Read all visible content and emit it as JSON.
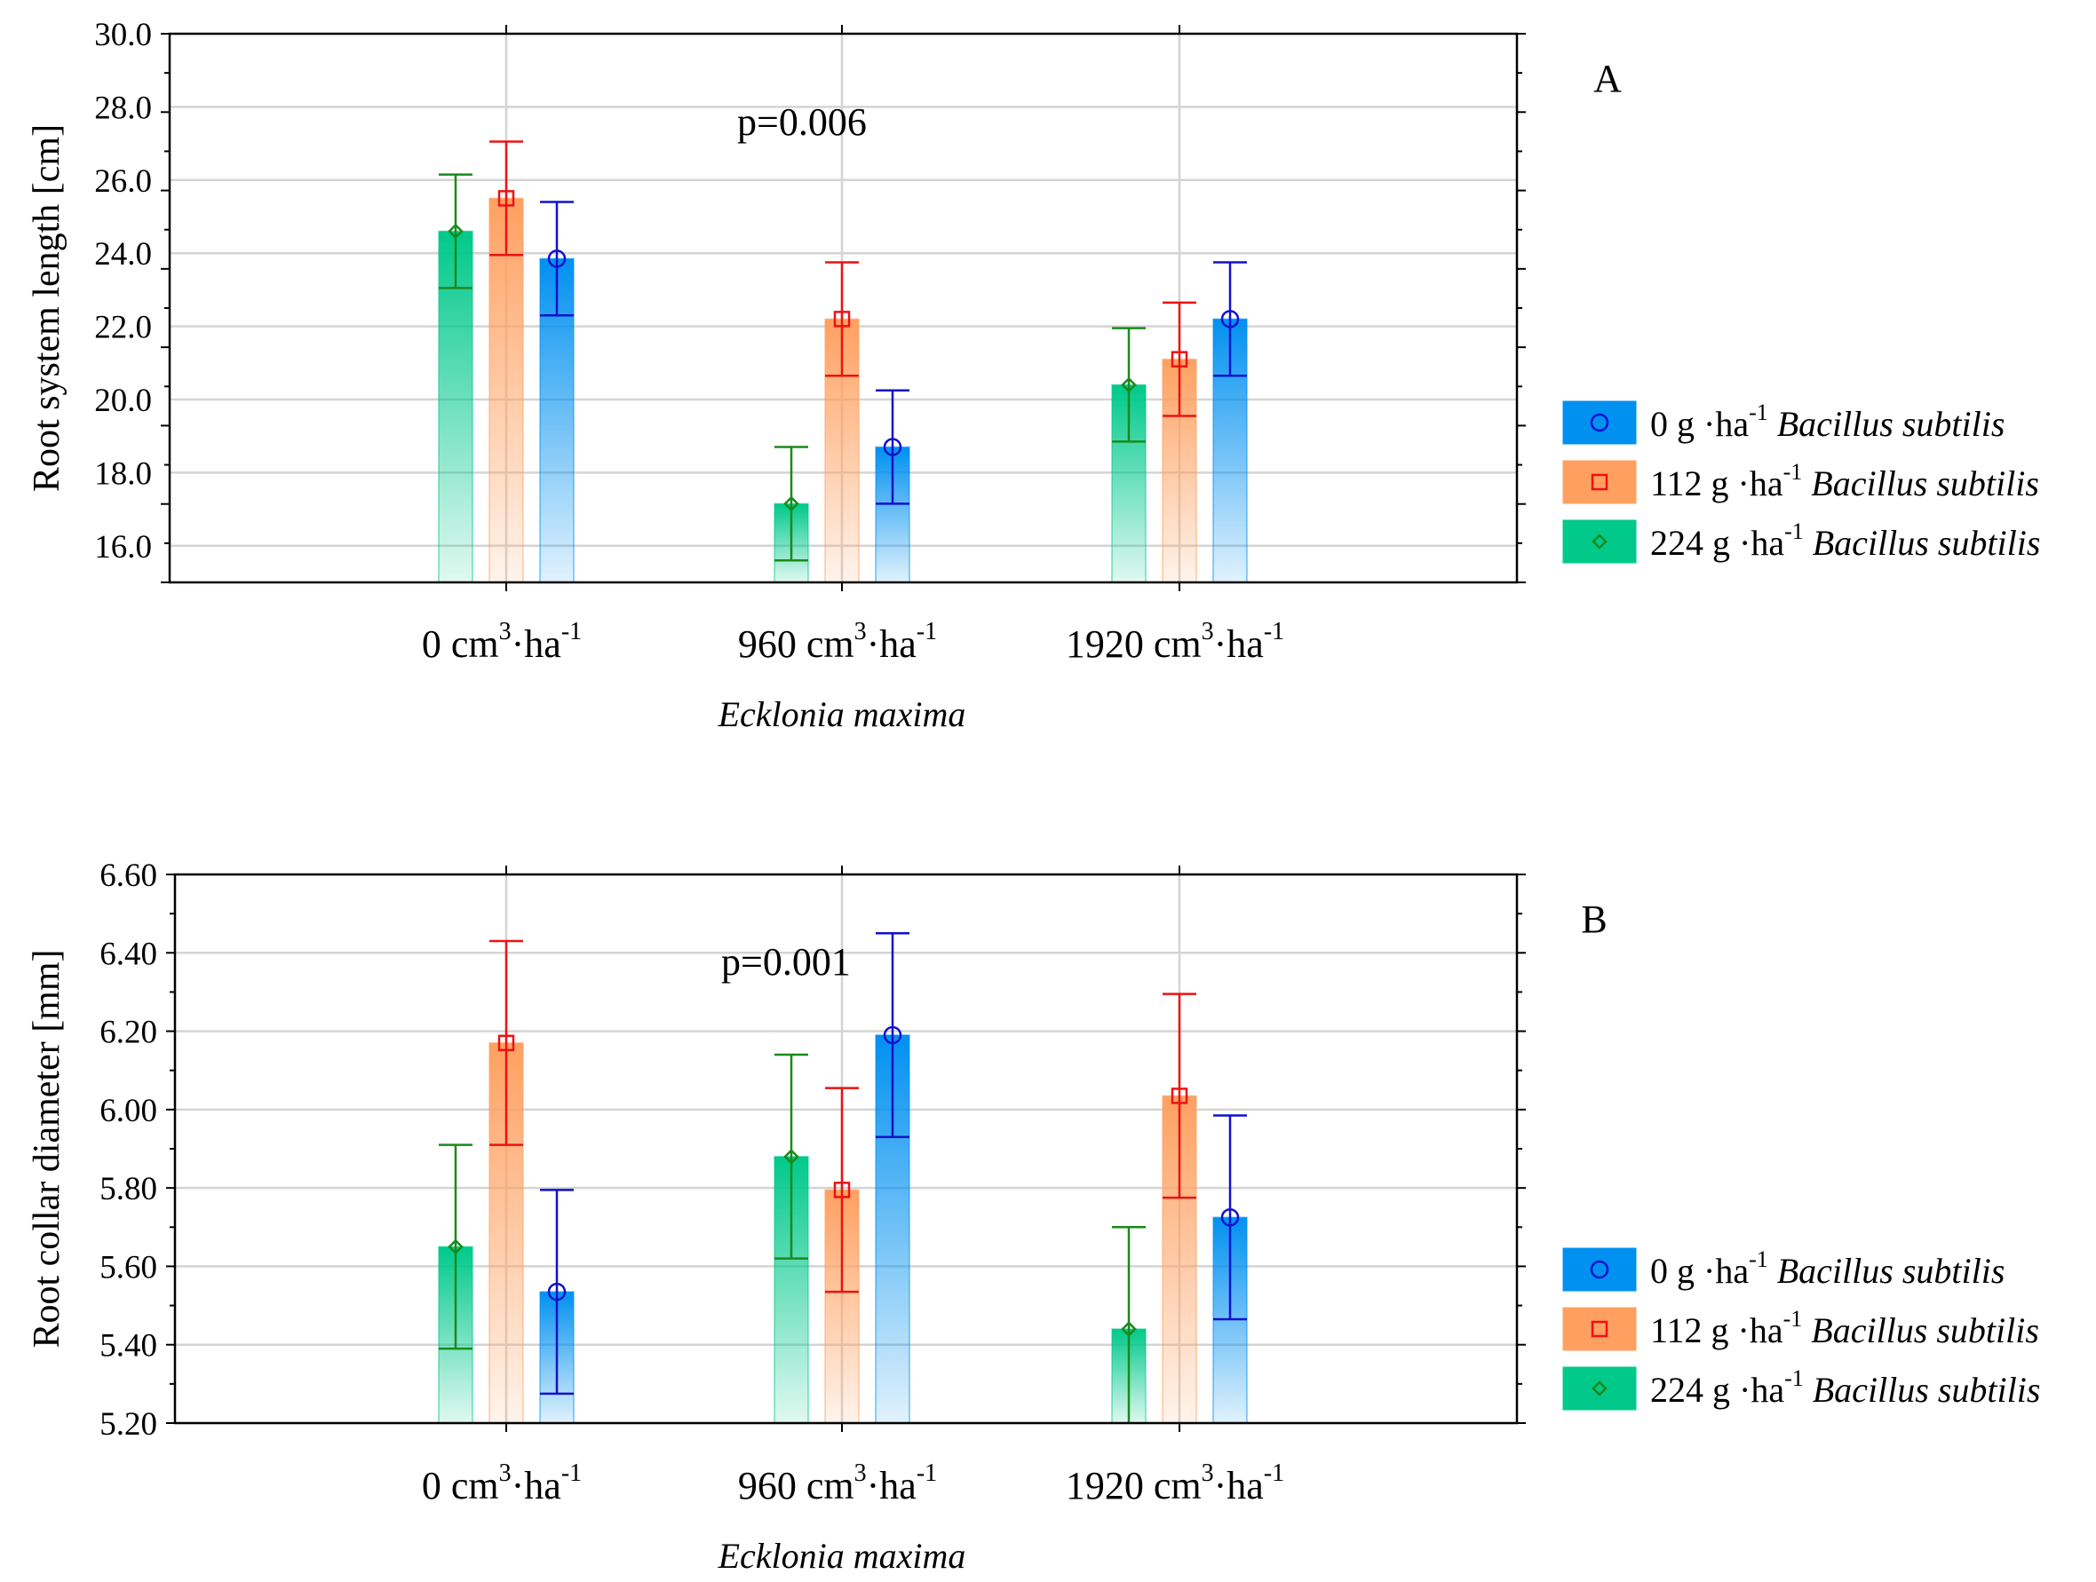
{
  "chart_data": [
    {
      "type": "bar",
      "panel_label": "A",
      "ylabel": "Root system length [cm]",
      "ylim": [
        15.0,
        30.0
      ],
      "yticks": [
        "30.0",
        "28.0",
        "26.0",
        "24.0",
        "22.0",
        "20.0",
        "18.0",
        "16.0"
      ],
      "ytick_values": [
        30,
        28,
        26,
        24,
        22,
        20,
        18,
        16
      ],
      "xlabel": "Ecklonia maxima",
      "categories": [
        {
          "main": "0 cm",
          "sup1": "3",
          "mid": "·ha",
          "sup2": "-1"
        },
        {
          "main": "960 cm",
          "sup1": "3",
          "mid": "·ha",
          "sup2": "-1"
        },
        {
          "main": "1920 cm",
          "sup1": "3",
          "mid": "·ha",
          "sup2": "-1"
        }
      ],
      "annotation": "p=0.006",
      "grid": true,
      "legend_position": "right",
      "series": [
        {
          "name": "224 g ·ha-1 Bacillus subtilis",
          "legend_dose": "224 g ·ha",
          "legend_sup": "-1",
          "legend_species": "Bacillus subtilis",
          "marker": "diamond",
          "color": "#1a8a1a",
          "fill": "#00c98a",
          "values": [
            24.6,
            17.15,
            20.4
          ],
          "err_low": [
            23.05,
            15.6,
            18.85
          ],
          "err_high": [
            26.15,
            18.7,
            21.95
          ]
        },
        {
          "name": "112 g ·ha-1 Bacillus subtilis",
          "legend_dose": "112 g ·ha",
          "legend_sup": "-1",
          "legend_species": "Bacillus subtilis",
          "marker": "square",
          "color": "#ee1111",
          "fill": "#ffa060",
          "values": [
            25.5,
            22.2,
            21.1
          ],
          "err_low": [
            23.95,
            20.65,
            19.55
          ],
          "err_high": [
            27.05,
            23.75,
            22.65
          ]
        },
        {
          "name": "0 g ·ha-1 Bacillus subtilis",
          "legend_dose": "0 g ·ha",
          "legend_sup": "-1",
          "legend_species": "Bacillus subtilis",
          "marker": "circle",
          "color": "#1111cc",
          "fill": "#0090f0",
          "values": [
            23.85,
            18.7,
            22.2
          ],
          "err_low": [
            22.3,
            17.15,
            20.65
          ],
          "err_high": [
            25.4,
            20.25,
            23.75
          ]
        }
      ]
    },
    {
      "type": "bar",
      "panel_label": "B",
      "ylabel": "Root collar diameter [mm]",
      "ylim": [
        5.2,
        6.6
      ],
      "yticks": [
        "6.60",
        "6.40",
        "6.20",
        "6.00",
        "5.80",
        "5.60",
        "5.40",
        "5.20"
      ],
      "ytick_values": [
        6.6,
        6.4,
        6.2,
        6.0,
        5.8,
        5.6,
        5.4,
        5.2
      ],
      "xlabel": "Ecklonia maxima",
      "categories": [
        {
          "main": "0 cm",
          "sup1": "3",
          "mid": "·ha",
          "sup2": "-1"
        },
        {
          "main": "960 cm",
          "sup1": "3",
          "mid": "·ha",
          "sup2": "-1"
        },
        {
          "main": "1920 cm",
          "sup1": "3",
          "mid": "·ha",
          "sup2": "-1"
        }
      ],
      "annotation": "p=0.001",
      "grid": true,
      "legend_position": "right",
      "series": [
        {
          "name": "224 g ·ha-1 Bacillus subtilis",
          "legend_dose": "224 g ·ha",
          "legend_sup": "-1",
          "legend_species": "Bacillus subtilis",
          "marker": "diamond",
          "color": "#1a8a1a",
          "fill": "#00c98a",
          "values": [
            5.65,
            5.88,
            5.44
          ],
          "err_low": [
            5.39,
            5.62,
            5.18
          ],
          "err_high": [
            5.91,
            6.14,
            5.7
          ]
        },
        {
          "name": "112 g ·ha-1 Bacillus subtilis",
          "legend_dose": "112 g ·ha",
          "legend_sup": "-1",
          "legend_species": "Bacillus subtilis",
          "marker": "square",
          "color": "#ee1111",
          "fill": "#ffa060",
          "values": [
            6.17,
            5.795,
            6.035
          ],
          "err_low": [
            5.91,
            5.535,
            5.775
          ],
          "err_high": [
            6.43,
            6.055,
            6.295
          ]
        },
        {
          "name": "0 g ·ha-1 Bacillus subtilis",
          "legend_dose": "0 g ·ha",
          "legend_sup": "-1",
          "legend_species": "Bacillus subtilis",
          "marker": "circle",
          "color": "#1111cc",
          "fill": "#0090f0",
          "values": [
            5.535,
            6.19,
            5.725
          ],
          "err_low": [
            5.275,
            5.93,
            5.465
          ],
          "err_high": [
            5.795,
            6.45,
            5.985
          ]
        }
      ]
    }
  ]
}
